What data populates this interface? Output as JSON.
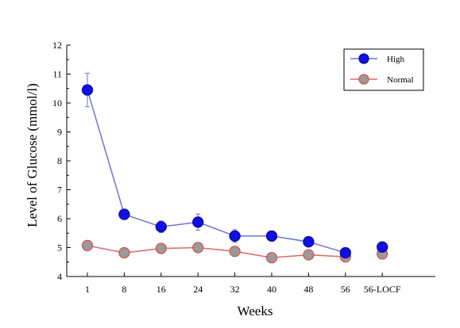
{
  "chart_data": {
    "type": "line",
    "title": "",
    "xlabel": "Weeks",
    "ylabel": "Level of Glucose (mmol/l)",
    "categories": [
      "1",
      "8",
      "16",
      "24",
      "32",
      "40",
      "48",
      "56",
      "56-LOCF"
    ],
    "ylim": [
      4,
      12
    ],
    "yticks": [
      4,
      5,
      6,
      7,
      8,
      9,
      10,
      11,
      12
    ],
    "grid": false,
    "legend_position": "top-right",
    "series": [
      {
        "name": "High",
        "color": "#1010e0",
        "line_color": "#6f73d6",
        "values": [
          10.45,
          6.15,
          5.72,
          5.88,
          5.4,
          5.4,
          5.2,
          4.82,
          5.02
        ],
        "errors": [
          0.58,
          0.18,
          0.2,
          0.28,
          0.22,
          0.12,
          0.12,
          0.1,
          0.12
        ],
        "connected_points": 8
      },
      {
        "name": "Normal",
        "color": "#9a9a9a",
        "line_color": "#e06666",
        "values": [
          5.07,
          4.82,
          4.97,
          5.0,
          4.87,
          4.65,
          4.75,
          4.68,
          4.78
        ],
        "errors": [
          0.07,
          0.05,
          0.05,
          0.07,
          0.07,
          0.05,
          0.05,
          0.05,
          0.07
        ],
        "connected_points": 8
      }
    ]
  }
}
